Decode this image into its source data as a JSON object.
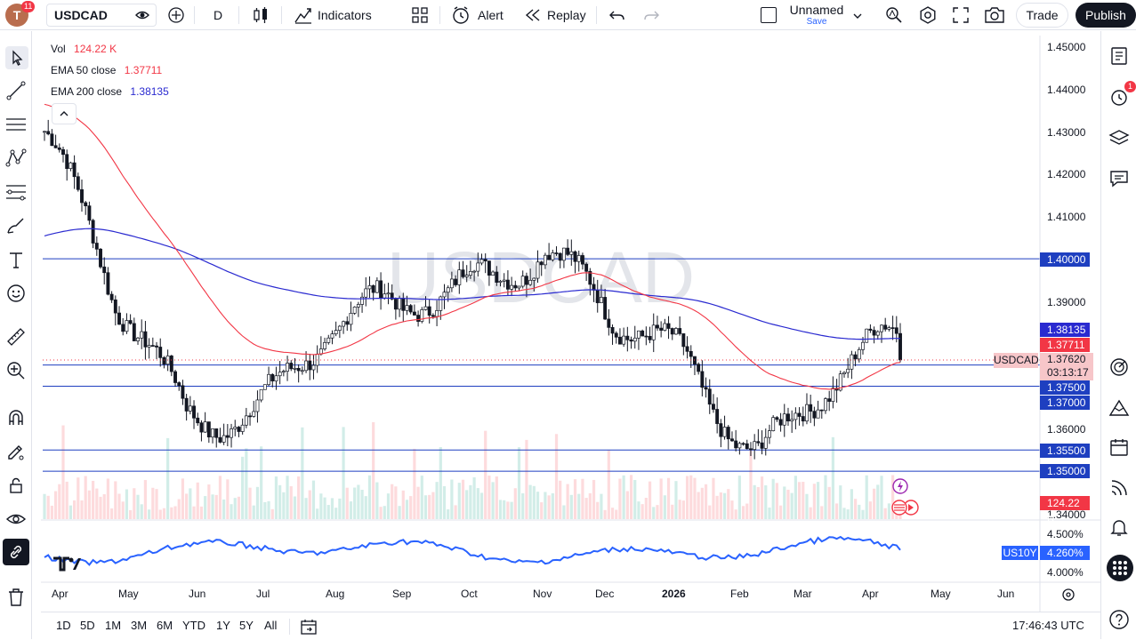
{
  "topbar": {
    "avatar_letter": "T",
    "avatar_badge": "11",
    "symbol": "USDCAD",
    "interval": "D",
    "indicators_label": "Indicators",
    "alert_label": "Alert",
    "replay_label": "Replay",
    "layout_name": "Unnamed",
    "layout_status": "Save",
    "trade_label": "Trade",
    "publish_label": "Publish"
  },
  "legend": {
    "vol_label": "Vol",
    "vol_value": "124.22 K",
    "ema50_label": "EMA 50 close",
    "ema50_value": "1.37711",
    "ema200_label": "EMA 200 close",
    "ema200_value": "1.38135"
  },
  "watermark": "USDCAD",
  "price_axis": [
    "1.45000",
    "1.44000",
    "1.43000",
    "1.42000",
    "1.41000",
    "1.39000",
    "1.36000",
    "1.34000"
  ],
  "price_labels": {
    "p140000": "1.40000",
    "ema200": "1.38135",
    "ema50": "1.37711",
    "symbol_tag": "USDCAD",
    "last": "1.37620",
    "countdown": "03:13:17",
    "p137500": "1.37500",
    "p137000": "1.37000",
    "p135500": "1.35500",
    "p135000": "1.35000",
    "vol": "124.22 K"
  },
  "lower_pane": {
    "upper_tick": "4.500%",
    "lower_tick": "4.000%",
    "symbol": "US10Y",
    "value": "4.260%"
  },
  "time_axis": [
    "Apr",
    "May",
    "Jun",
    "Jul",
    "Aug",
    "Sep",
    "Oct",
    "Nov",
    "Dec",
    "2026",
    "Feb",
    "Mar",
    "Apr",
    "May",
    "Jun"
  ],
  "bottombar": {
    "ranges": [
      "1D",
      "5D",
      "1M",
      "3M",
      "6M",
      "YTD",
      "1Y",
      "5Y",
      "All"
    ],
    "clock": "17:46:43 UTC"
  },
  "rightbar": {
    "alerts_badge": "1"
  },
  "colors": {
    "candle": "#131722",
    "ema50": "#f23645",
    "ema200": "#2a2ad0",
    "hline": "#1e3fc0",
    "yield": "#2962ff",
    "publish_bg": "#131722",
    "label_blue": "#2962ff",
    "label_red": "#f23645"
  },
  "chart_data": {
    "type": "candlestick",
    "title": "USDCAD, D",
    "ylim": [
      1.335,
      1.455
    ],
    "horizontal_levels": [
      1.4,
      1.375,
      1.37,
      1.355,
      1.35
    ],
    "last_price": 1.3762,
    "ema50_last": 1.37711,
    "ema200_last": 1.38135,
    "volume_last": "124.22K",
    "close_path_monthly": [
      [
        "Apr",
        1.43
      ],
      [
        "May",
        1.385
      ],
      [
        "Jun",
        1.365
      ],
      [
        "Jul",
        1.37
      ],
      [
        "Aug",
        1.38
      ],
      [
        "Sep",
        1.385
      ],
      [
        "Oct",
        1.4
      ],
      [
        "Nov",
        1.405
      ],
      [
        "Dec",
        1.38
      ],
      [
        "Jan",
        1.375
      ],
      [
        "Feb",
        1.36
      ],
      [
        "Mar",
        1.37
      ],
      [
        "Apr",
        1.3762
      ]
    ]
  }
}
